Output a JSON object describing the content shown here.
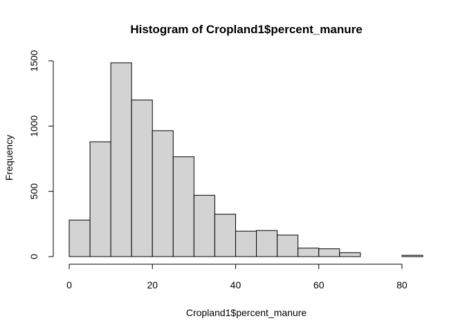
{
  "chart_data": {
    "type": "bar",
    "title": "Histogram of Cropland1$percent_manure",
    "xlabel": "Cropland1$percent_manure",
    "ylabel": "Frequency",
    "bin_edges": [
      0,
      5,
      10,
      15,
      20,
      25,
      30,
      35,
      40,
      45,
      50,
      55,
      60,
      65,
      70,
      75,
      80,
      85
    ],
    "values": [
      280,
      880,
      1485,
      1200,
      965,
      765,
      470,
      325,
      195,
      200,
      165,
      65,
      60,
      30,
      0,
      0,
      10
    ],
    "xlim": [
      0,
      85
    ],
    "ylim": [
      0,
      1500
    ],
    "x_ticks": [
      "0",
      "20",
      "40",
      "60",
      "80"
    ],
    "y_ticks": [
      "0",
      "500",
      "1000",
      "1500"
    ],
    "grid": false,
    "legend": "none"
  }
}
